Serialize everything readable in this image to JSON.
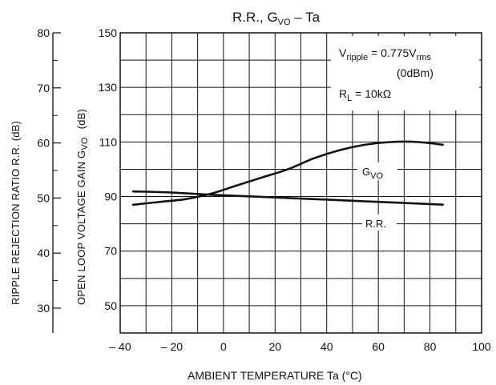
{
  "chart_data": {
    "type": "line",
    "title": {
      "main": "R.R., G",
      "sub": "VO",
      "suffix": " – Ta"
    },
    "xlabel": "AMBIENT TEMPERATURE   Ta   (°C)",
    "x_ticks": [
      -40,
      -20,
      0,
      20,
      40,
      60,
      80,
      100
    ],
    "x_tick_labels": [
      "– 40",
      "– 20",
      "0",
      "20",
      "40",
      "60",
      "80",
      "100"
    ],
    "xlim": [
      -40,
      100
    ],
    "left_axis": {
      "label": "RIPPLE REJECTION RATIO   R.R.   (dB)",
      "ticks": [
        30,
        40,
        50,
        60,
        70,
        80
      ],
      "tick_labels": [
        "30",
        "40",
        "50",
        "60",
        "70",
        "80"
      ],
      "ylim": [
        25,
        80
      ]
    },
    "right_axis": {
      "label_main": "OPEN LOOP VOLTAGE GAIN   G",
      "label_sub": "VO",
      "label_unit": "(dB)",
      "ticks": [
        50,
        70,
        90,
        110,
        130,
        150
      ],
      "tick_labels": [
        "50",
        "70",
        "90",
        "110",
        "130",
        "150"
      ],
      "ylim": [
        40,
        150
      ]
    },
    "annotations": {
      "vripple_main": "V",
      "vripple_sub": "ripple",
      "vripple_eq": " = 0.775V",
      "vripple_unit_sub": "rms",
      "dbm": "(0dBm)",
      "rl_main": "R",
      "rl_sub": "L",
      "rl_eq": " = 10kΩ"
    },
    "series": [
      {
        "name": "GVO",
        "label_main": "G",
        "label_sub": "VO",
        "axis": "right",
        "x": [
          -35,
          -25,
          -15,
          -5,
          5,
          15,
          25,
          35,
          45,
          55,
          65,
          75,
          85
        ],
        "y": [
          87,
          88,
          89,
          91,
          94,
          97,
          100,
          104,
          107,
          109,
          110,
          110,
          109
        ]
      },
      {
        "name": "R.R.",
        "label_main": "R.R.",
        "axis": "left",
        "x": [
          -35,
          -20,
          -5,
          10,
          25,
          40,
          55,
          70,
          85
        ],
        "y": [
          51.2,
          51.0,
          50.6,
          50.3,
          50.0,
          49.7,
          49.4,
          49.1,
          48.8
        ]
      }
    ],
    "grid": true
  }
}
